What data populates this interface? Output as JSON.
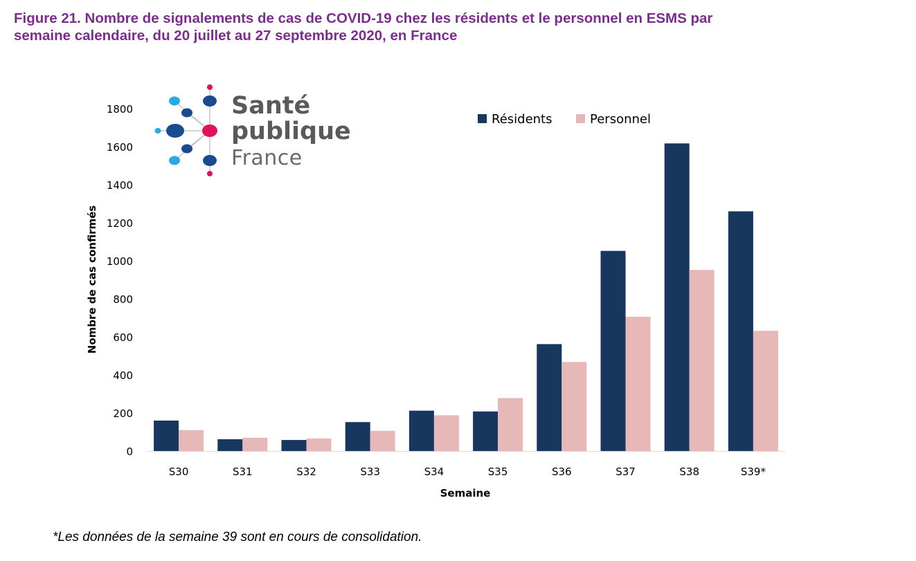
{
  "title": {
    "line1": "Figure 21. Nombre de signalements de cas de COVID-19 chez les résidents et le personnel en ESMS par",
    "line2": "semaine calendaire, du 20 juillet au 27 septembre 2020, en France"
  },
  "logo": {
    "line1": "Santé",
    "line2": "publique",
    "line3": "France"
  },
  "footnote": "*Les données de la semaine 39 sont en cours de consolidation.",
  "colors": {
    "residents": "#17375e",
    "personnel": "#e6b9b8",
    "title": "#7b2d8e"
  },
  "chart_data": {
    "type": "bar",
    "xlabel": "Semaine",
    "ylabel": "Nombre de cas confirmés",
    "ylim": [
      0,
      1800
    ],
    "yticks": [
      0,
      200,
      400,
      600,
      800,
      1000,
      1200,
      1400,
      1600,
      1800
    ],
    "grid": false,
    "legend_position": "top-right",
    "categories": [
      "S30",
      "S31",
      "S32",
      "S33",
      "S34",
      "S35",
      "S36",
      "S37",
      "S38",
      "S39*"
    ],
    "series": [
      {
        "name": "Résidents",
        "color": "#17375e",
        "values": [
          160,
          62,
          58,
          152,
          212,
          208,
          562,
          1052,
          1617,
          1260
        ]
      },
      {
        "name": "Personnel",
        "color": "#e6b9b8",
        "values": [
          110,
          70,
          66,
          106,
          188,
          278,
          468,
          706,
          952,
          632
        ]
      }
    ]
  }
}
